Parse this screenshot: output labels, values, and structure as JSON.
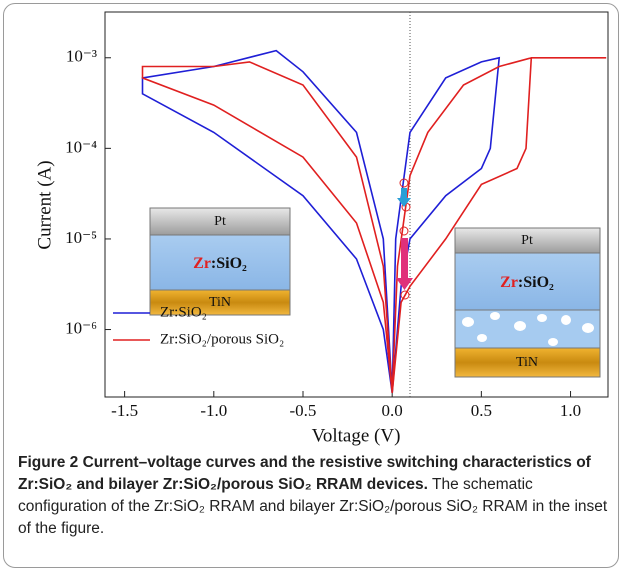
{
  "chart_data": {
    "type": "line",
    "xlabel": "Voltage (V)",
    "ylabel": "Current (A)",
    "xlim": [
      -1.61,
      1.21
    ],
    "ylim": [
      1.8e-07,
      0.0032
    ],
    "yscale": "log",
    "xticks": [
      {
        "value": -1.5,
        "label": "-1.5"
      },
      {
        "value": -1.0,
        "label": "-1.0"
      },
      -0.5,
      {
        "value": 0.0,
        "label": "0.0"
      },
      0.5,
      {
        "value": 1.0,
        "label": "1.0"
      }
    ],
    "yticks": [
      {
        "value": 1e-06,
        "label": "10⁻⁶"
      },
      {
        "value": 1e-05,
        "label": "10⁻⁵"
      },
      {
        "value": 0.0001,
        "label": "10⁻⁴"
      },
      {
        "value": 0.001,
        "label": "10⁻³"
      }
    ],
    "vline": 0.1,
    "legend": "lower left",
    "series": [
      {
        "name": "Zr:SiO₂",
        "color": "#1f1fd6",
        "x": [
          0,
          0.05,
          0.1,
          0.3,
          0.5,
          0.55,
          0.6,
          0.5,
          0.3,
          0.1,
          0.02,
          0,
          -0.05,
          -0.2,
          -0.5,
          -0.65,
          -1.0,
          -1.4,
          -1.4,
          -1.0,
          -0.5,
          -0.2,
          -0.05,
          0
        ],
        "values": [
          2e-07,
          3e-06,
          1e-05,
          3e-05,
          6e-05,
          0.0001,
          0.001,
          0.0009,
          0.0006,
          0.00015,
          1e-05,
          2e-07,
          1e-05,
          0.00015,
          0.0007,
          0.0012,
          0.0008,
          0.0006,
          0.0004,
          0.00015,
          3e-05,
          6e-06,
          1e-06,
          2e-07
        ]
      },
      {
        "name": "Zr:SiO₂/porous SiO₂",
        "color": "#e02020",
        "x": [
          0,
          0.05,
          0.1,
          0.3,
          0.5,
          0.7,
          0.75,
          0.78,
          1.2,
          0.78,
          0.6,
          0.4,
          0.2,
          0.1,
          0.03,
          0,
          -0.05,
          -0.2,
          -0.5,
          -0.8,
          -1.0,
          -1.4,
          -1.4,
          -1.0,
          -0.5,
          -0.2,
          -0.05,
          0
        ],
        "values": [
          2e-07,
          2e-06,
          3e-06,
          1e-05,
          4e-05,
          6e-05,
          0.0001,
          0.001,
          0.001,
          0.001,
          0.0008,
          0.0005,
          0.00015,
          5e-05,
          5e-06,
          2e-07,
          5e-06,
          8e-05,
          0.0005,
          0.0009,
          0.0008,
          0.0008,
          0.0006,
          0.0003,
          8e-05,
          1.5e-05,
          2e-06,
          2e-07
        ]
      }
    ],
    "insets": [
      {
        "top": "Pt",
        "middle_a": "Zr",
        "middle_b": ":SiO₂",
        "bottom": "TiN"
      },
      {
        "top": "Pt",
        "middle_a": "Zr",
        "middle_b": ":SiO₂",
        "bottom": "TiN"
      }
    ]
  },
  "caption": {
    "title": "Figure 2 Current–voltage curves and the resistive switching characteristics of Zr:SiO₂ and bilayer Zr:SiO₂/porous SiO₂ RRAM devices.",
    "text": "The schematic configuration of the Zr:SiO₂ RRAM and bilayer Zr:SiO₂/porous SiO₂ RRAM in the inset of the figure."
  }
}
